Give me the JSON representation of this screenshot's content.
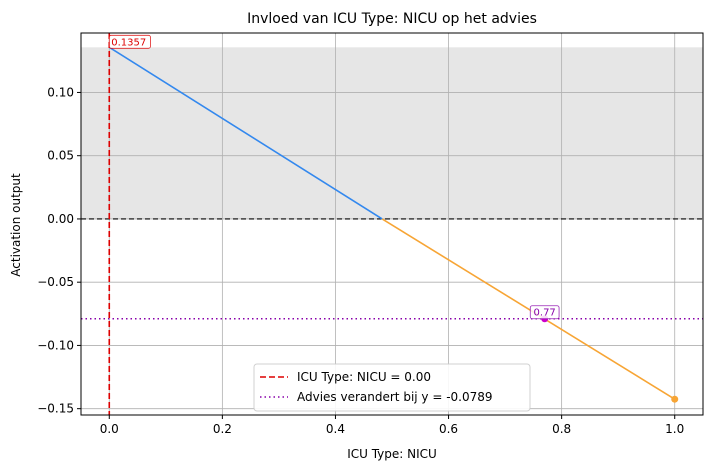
{
  "chart_data": {
    "type": "line",
    "title": "Invloed van ICU Type: NICU op het advies",
    "xlabel": "ICU Type: NICU",
    "ylabel": "Activation output",
    "xlim": [
      -0.05,
      1.05
    ],
    "ylim": [
      -0.155,
      0.147
    ],
    "xticks": [
      0.0,
      0.2,
      0.4,
      0.6,
      0.8,
      1.0
    ],
    "xtick_labels": [
      "0.0",
      "0.2",
      "0.4",
      "0.6",
      "0.8",
      "1.0"
    ],
    "yticks": [
      0.1,
      0.05,
      0.0,
      -0.05,
      -0.1,
      -0.15
    ],
    "ytick_labels": [
      "0.10",
      "0.05",
      "0.00",
      "−0.05",
      "−0.10",
      "−0.15"
    ],
    "grid": true,
    "shaded_region": {
      "y_from": 0.0,
      "y_to": 0.1357,
      "color": "#e6e6e6"
    },
    "series": [
      {
        "x": [
          0.0,
          0.4826
        ],
        "y": [
          0.1357,
          0.0
        ],
        "color": "#3388ee"
      },
      {
        "x": [
          0.4826,
          1.0
        ],
        "y": [
          0.0,
          -0.1425
        ],
        "color": "#f7a535"
      }
    ],
    "end_point": {
      "x": 1.0,
      "y": -0.1425,
      "color": "#f7a535"
    },
    "zero_line": {
      "y": 0.0,
      "color": "#000000"
    },
    "current_value_line": {
      "x": 0.0,
      "color": "#dd0000",
      "label": "ICU Type: NICU = 0.00"
    },
    "threshold_line": {
      "y": -0.0789,
      "color": "#8800aa",
      "label": "Advies verandert bij y = -0.0789"
    },
    "annotations": [
      {
        "text": "0.1357",
        "x": 0.0,
        "y": 0.1357,
        "color": "#dd0000"
      },
      {
        "text": "0.77",
        "x": 0.77,
        "y": -0.0789,
        "color": "#8800aa",
        "marker_color": "#cc00cc"
      }
    ],
    "legend": {
      "position": "lower-center"
    }
  }
}
